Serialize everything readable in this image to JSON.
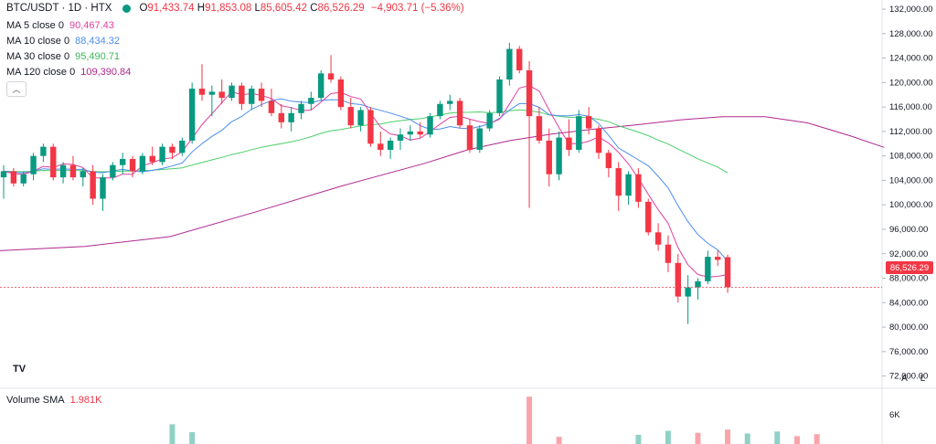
{
  "header": {
    "symbol": "BTC/USDT · 1D · HTX",
    "open_label": "O",
    "open": "91,433.74",
    "high_label": "H",
    "high": "91,853.08",
    "low_label": "L",
    "low": "85,605.42",
    "close_label": "C",
    "close": "86,526.29",
    "change": "−4,903.71 (−5.36%)"
  },
  "legend": [
    {
      "label": "MA 5 close 0",
      "value": "90,467.43",
      "color": "#e040a0"
    },
    {
      "label": "MA 10 close 0",
      "value": "88,434.32",
      "color": "#4a8df0"
    },
    {
      "label": "MA 30 close 0",
      "value": "95,490.71",
      "color": "#4ccf6a"
    },
    {
      "label": "MA 120 close 0",
      "value": "109,390.84",
      "color": "#b0288f"
    }
  ],
  "price_axis": {
    "ticks": [
      "132,000.00",
      "128,000.00",
      "124,000.00",
      "120,000.00",
      "116,000.00",
      "112,000.00",
      "108,000.00",
      "104,000.00",
      "100,000.00",
      "96,000.00",
      "92,000.00",
      "88,000.00",
      "84,000.00",
      "80,000.00",
      "76,000.00",
      "72,000.00"
    ],
    "current_price": "86,526.29",
    "auto_label": "A",
    "log_label": "L"
  },
  "volume": {
    "label": "Volume SMA",
    "value": "1.981K",
    "tick": "6K"
  },
  "logo_text": "TV",
  "collapse_icon": "chevron-up-icon",
  "colors": {
    "up": "#089981",
    "down": "#f23645"
  },
  "chart_data": {
    "type": "candlestick",
    "ylim": [
      70000,
      133500
    ],
    "yticks": [
      132000,
      128000,
      124000,
      120000,
      116000,
      112000,
      108000,
      104000,
      100000,
      96000,
      92000,
      88000,
      84000,
      80000,
      76000,
      72000
    ],
    "candles": [
      {
        "o": 104500,
        "h": 106500,
        "l": 101000,
        "c": 105500
      },
      {
        "o": 105500,
        "h": 106000,
        "l": 103000,
        "c": 103500
      },
      {
        "o": 103500,
        "h": 105500,
        "l": 103000,
        "c": 105000
      },
      {
        "o": 105000,
        "h": 108500,
        "l": 104000,
        "c": 108000
      },
      {
        "o": 108000,
        "h": 110000,
        "l": 107000,
        "c": 109500
      },
      {
        "o": 109500,
        "h": 110000,
        "l": 104000,
        "c": 104500
      },
      {
        "o": 104500,
        "h": 107000,
        "l": 103500,
        "c": 106500
      },
      {
        "o": 106500,
        "h": 108000,
        "l": 104000,
        "c": 104500
      },
      {
        "o": 104500,
        "h": 106000,
        "l": 103000,
        "c": 105500
      },
      {
        "o": 105500,
        "h": 106500,
        "l": 100000,
        "c": 101000
      },
      {
        "o": 101000,
        "h": 105000,
        "l": 99000,
        "c": 104500
      },
      {
        "o": 104500,
        "h": 107000,
        "l": 104000,
        "c": 106500
      },
      {
        "o": 106500,
        "h": 108500,
        "l": 105000,
        "c": 107500
      },
      {
        "o": 107500,
        "h": 108000,
        "l": 104500,
        "c": 105500
      },
      {
        "o": 105500,
        "h": 108500,
        "l": 105000,
        "c": 108000
      },
      {
        "o": 108000,
        "h": 109500,
        "l": 106500,
        "c": 107000
      },
      {
        "o": 107000,
        "h": 110000,
        "l": 106500,
        "c": 109500
      },
      {
        "o": 109500,
        "h": 110000,
        "l": 107500,
        "c": 108500
      },
      {
        "o": 108500,
        "h": 111000,
        "l": 108000,
        "c": 110500
      },
      {
        "o": 110500,
        "h": 120000,
        "l": 110000,
        "c": 119000
      },
      {
        "o": 119000,
        "h": 123000,
        "l": 117000,
        "c": 118000
      },
      {
        "o": 118000,
        "h": 119500,
        "l": 114500,
        "c": 118500
      },
      {
        "o": 118500,
        "h": 120500,
        "l": 116500,
        "c": 117500
      },
      {
        "o": 117500,
        "h": 120000,
        "l": 117000,
        "c": 119500
      },
      {
        "o": 119500,
        "h": 120000,
        "l": 115500,
        "c": 116500
      },
      {
        "o": 116500,
        "h": 119500,
        "l": 115500,
        "c": 119000
      },
      {
        "o": 119000,
        "h": 120000,
        "l": 116000,
        "c": 117000
      },
      {
        "o": 117000,
        "h": 119000,
        "l": 114500,
        "c": 115000
      },
      {
        "o": 115000,
        "h": 116500,
        "l": 112500,
        "c": 113500
      },
      {
        "o": 113500,
        "h": 116000,
        "l": 112000,
        "c": 115000
      },
      {
        "o": 115000,
        "h": 117000,
        "l": 114000,
        "c": 116500
      },
      {
        "o": 116500,
        "h": 118500,
        "l": 115500,
        "c": 117500
      },
      {
        "o": 117500,
        "h": 122000,
        "l": 117000,
        "c": 121500
      },
      {
        "o": 121500,
        "h": 124500,
        "l": 120000,
        "c": 120500
      },
      {
        "o": 120500,
        "h": 121000,
        "l": 115500,
        "c": 116000
      },
      {
        "o": 116000,
        "h": 117500,
        "l": 112500,
        "c": 113000
      },
      {
        "o": 113000,
        "h": 116000,
        "l": 112000,
        "c": 115500
      },
      {
        "o": 115500,
        "h": 116000,
        "l": 109500,
        "c": 110000
      },
      {
        "o": 110000,
        "h": 112000,
        "l": 108000,
        "c": 109000
      },
      {
        "o": 109000,
        "h": 111000,
        "l": 107500,
        "c": 110500
      },
      {
        "o": 110500,
        "h": 112500,
        "l": 109000,
        "c": 111500
      },
      {
        "o": 111500,
        "h": 113000,
        "l": 110500,
        "c": 112000
      },
      {
        "o": 112000,
        "h": 113500,
        "l": 111000,
        "c": 111500
      },
      {
        "o": 111500,
        "h": 115000,
        "l": 111000,
        "c": 114500
      },
      {
        "o": 114500,
        "h": 117000,
        "l": 114000,
        "c": 116500
      },
      {
        "o": 116500,
        "h": 118000,
        "l": 115500,
        "c": 117000
      },
      {
        "o": 117000,
        "h": 117500,
        "l": 112500,
        "c": 113000
      },
      {
        "o": 113000,
        "h": 114000,
        "l": 108500,
        "c": 109000
      },
      {
        "o": 109000,
        "h": 113000,
        "l": 108500,
        "c": 112500
      },
      {
        "o": 112500,
        "h": 115500,
        "l": 112000,
        "c": 115000
      },
      {
        "o": 115000,
        "h": 121000,
        "l": 114500,
        "c": 120500
      },
      {
        "o": 120500,
        "h": 126500,
        "l": 119500,
        "c": 125500
      },
      {
        "o": 125500,
        "h": 126000,
        "l": 121500,
        "c": 122000
      },
      {
        "o": 122000,
        "h": 123500,
        "l": 99500,
        "c": 114500
      },
      {
        "o": 114500,
        "h": 116000,
        "l": 110000,
        "c": 110500
      },
      {
        "o": 110500,
        "h": 112500,
        "l": 103000,
        "c": 105000
      },
      {
        "o": 105000,
        "h": 112000,
        "l": 104000,
        "c": 111000
      },
      {
        "o": 111000,
        "h": 114000,
        "l": 108000,
        "c": 109000
      },
      {
        "o": 109000,
        "h": 115500,
        "l": 108500,
        "c": 114500
      },
      {
        "o": 114500,
        "h": 116000,
        "l": 111500,
        "c": 112500
      },
      {
        "o": 112500,
        "h": 113000,
        "l": 107500,
        "c": 108500
      },
      {
        "o": 108500,
        "h": 109000,
        "l": 104500,
        "c": 106000
      },
      {
        "o": 106000,
        "h": 107000,
        "l": 99000,
        "c": 101500
      },
      {
        "o": 101500,
        "h": 105500,
        "l": 100000,
        "c": 105000
      },
      {
        "o": 105000,
        "h": 106000,
        "l": 99500,
        "c": 100500
      },
      {
        "o": 100500,
        "h": 101000,
        "l": 95000,
        "c": 95500
      },
      {
        "o": 95500,
        "h": 97000,
        "l": 92500,
        "c": 93500
      },
      {
        "o": 93500,
        "h": 95000,
        "l": 89000,
        "c": 90500
      },
      {
        "o": 90500,
        "h": 92000,
        "l": 84000,
        "c": 85000
      },
      {
        "o": 85000,
        "h": 88500,
        "l": 80500,
        "c": 86500
      },
      {
        "o": 86500,
        "h": 88000,
        "l": 84500,
        "c": 87500
      },
      {
        "o": 87500,
        "h": 92500,
        "l": 87000,
        "c": 91500
      },
      {
        "o": 91500,
        "h": 92500,
        "l": 90000,
        "c": 91000
      },
      {
        "o": 91433.74,
        "h": 91853.08,
        "l": 85605.42,
        "c": 86526.29
      }
    ],
    "ma120": [
      [
        0,
        92500
      ],
      [
        10,
        93200
      ],
      [
        20,
        94800
      ],
      [
        30,
        98800
      ],
      [
        40,
        103000
      ],
      [
        50,
        106800
      ],
      [
        55,
        109000
      ],
      [
        60,
        110500
      ],
      [
        65,
        111600
      ],
      [
        70,
        112400
      ],
      [
        75,
        113100
      ],
      [
        80,
        113900
      ],
      [
        85,
        114400
      ],
      [
        90,
        114400
      ],
      [
        95,
        113400
      ],
      [
        100,
        111300
      ],
      [
        104,
        109400
      ]
    ],
    "volumes": [
      {
        "i": 17,
        "v": 3.0,
        "up": true
      },
      {
        "i": 19,
        "v": 1.8,
        "up": true
      },
      {
        "i": 53,
        "v": 7.2,
        "up": false
      },
      {
        "i": 56,
        "v": 1.1,
        "up": false
      },
      {
        "i": 64,
        "v": 1.4,
        "up": true
      },
      {
        "i": 67,
        "v": 2.0,
        "up": true
      },
      {
        "i": 70,
        "v": 1.7,
        "up": false
      },
      {
        "i": 73,
        "v": 2.2,
        "up": false
      },
      {
        "i": 75,
        "v": 1.6,
        "up": true
      },
      {
        "i": 78,
        "v": 1.9,
        "up": true
      },
      {
        "i": 80,
        "v": 1.2,
        "up": false
      },
      {
        "i": 82,
        "v": 1.5,
        "up": false
      }
    ]
  }
}
